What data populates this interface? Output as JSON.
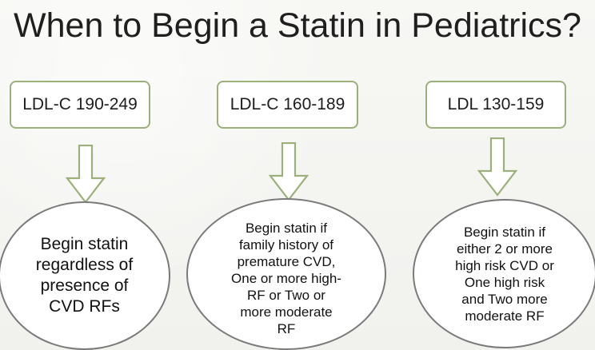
{
  "slide": {
    "title": "When to Begin a Statin in Pediatrics?"
  },
  "boxes": [
    {
      "label": "LDL-C 190-249"
    },
    {
      "label": "LDL-C 160-189"
    },
    {
      "label": "LDL 130-159"
    }
  ],
  "ellipses": [
    {
      "text": "Begin statin\nregardless of\npresence of\nCVD RFs"
    },
    {
      "text": "Begin statin if\nfamily history of\npremature CVD,\nOne or more high-\nRF or Two or\nmore moderate\nRF"
    },
    {
      "text": "Begin statin if\neither 2 or more\nhigh risk CVD or\nOne high risk\nand Two  more\nmoderate RF"
    }
  ],
  "colors": {
    "background": "#f4f4f1",
    "box_border": "#9bb07a",
    "arrow_outline": "#9bb07a",
    "ellipse_border": "#7a7a7a",
    "text": "#1d1d1d"
  }
}
